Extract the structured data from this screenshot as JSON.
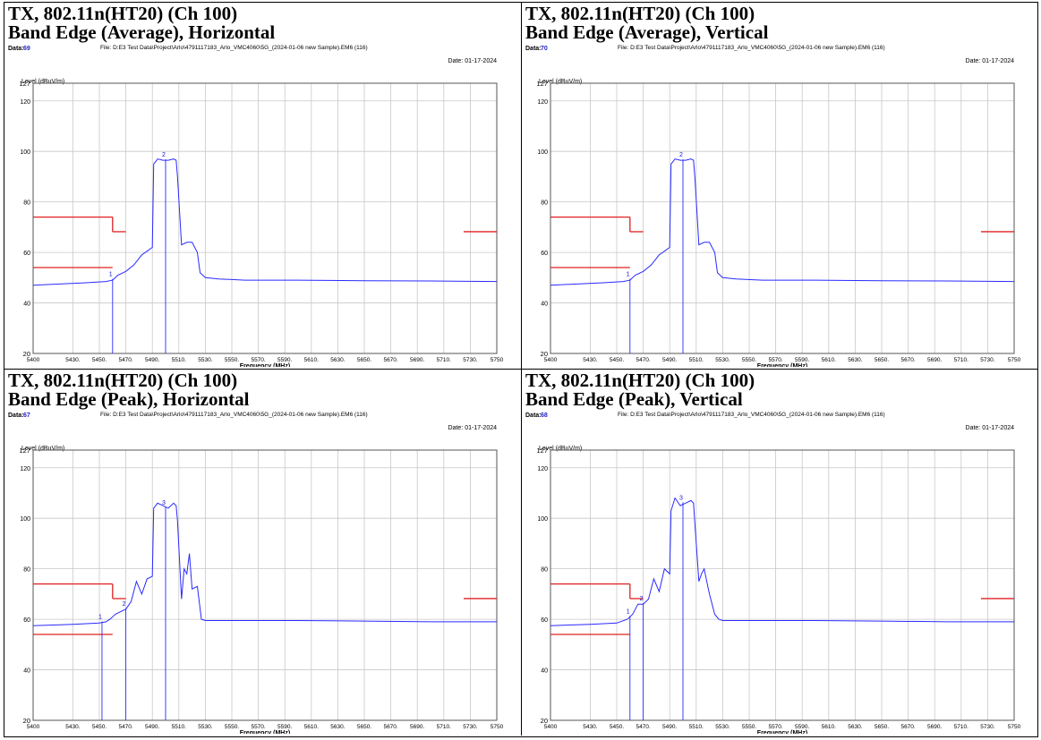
{
  "axis": {
    "ylabel": "Level (dBuV/m)",
    "xlabel": "Frequency (MHz)",
    "ytick_labels": [
      "127",
      "120",
      "100",
      "80",
      "60",
      "40",
      "20"
    ],
    "xtick_labels": [
      "5400",
      "5430.",
      "5450.",
      "5470.",
      "5490.",
      "5510.",
      "5530.",
      "5550.",
      "5570.",
      "5590.",
      "5610.",
      "5630.",
      "5650.",
      "5670.",
      "5690.",
      "5710.",
      "5730.",
      "5750"
    ]
  },
  "common": {
    "file": "File: D:E3 Test Data\\Project\\Arlo\\4791117183_Arlo_VMC4060\\5G_(2024-01-06 new Sample).EM6 (116)",
    "date": "Date: 01-17-2024"
  },
  "colors": {
    "trace": "#2a2aff",
    "limit": "#e02020",
    "grid": "#c8c8c8",
    "marker_text": "#1010cc"
  },
  "panels": [
    {
      "title_line1": "TX, 802.11n(HT20) (Ch 100)",
      "title_line2": "Band Edge (Average), Horizontal",
      "data_label": "Data:",
      "data_number": "69",
      "marker_labels": [
        "1",
        "2"
      ]
    },
    {
      "title_line1": "TX, 802.11n(HT20) (Ch 100)",
      "title_line2": "Band Edge (Average), Vertical",
      "data_label": "Data:",
      "data_number": "70",
      "marker_labels": [
        "1",
        "2"
      ]
    },
    {
      "title_line1": "TX, 802.11n(HT20) (Ch 100)",
      "title_line2": "Band Edge (Peak), Horizontal",
      "data_label": "Data:",
      "data_number": "67",
      "marker_labels": [
        "1",
        "2",
        "3"
      ]
    },
    {
      "title_line1": "TX, 802.11n(HT20) (Ch 100)",
      "title_line2": "Band Edge (Peak), Vertical",
      "data_label": "Data:",
      "data_number": "68",
      "marker_labels": [
        "1",
        "2",
        "3"
      ]
    }
  ],
  "chart_data": [
    {
      "type": "line",
      "title": "Band Edge (Average), Horizontal",
      "xlabel": "Frequency (MHz)",
      "ylabel": "Level (dBuV/m)",
      "xlim": [
        5400,
        5750
      ],
      "ylim": [
        20,
        127
      ],
      "grid": true,
      "series": [
        {
          "x": [
            5400,
            5420,
            5440,
            5455,
            5460,
            5464,
            5470,
            5476,
            5482,
            5486,
            5490,
            5491,
            5494,
            5498,
            5502,
            5506,
            5508,
            5509,
            5512,
            5516,
            5520,
            5524,
            5526,
            5530,
            5540,
            5560,
            5600,
            5650,
            5700,
            5750
          ],
          "y": [
            47,
            47.5,
            48,
            48.5,
            49,
            51,
            52.5,
            55,
            59,
            60.5,
            62,
            95,
            97,
            96.5,
            96.5,
            97,
            96.5,
            90,
            63,
            64,
            64,
            60,
            52,
            50,
            49.5,
            49,
            49,
            48.8,
            48.7,
            48.5
          ]
        }
      ],
      "limits": [
        {
          "x": [
            5400,
            5460
          ],
          "y": 74
        },
        {
          "x": [
            5460,
            5470
          ],
          "y": 68.2
        },
        {
          "x": [
            5725,
            5750
          ],
          "y": 68.2
        },
        {
          "x": [
            5400,
            5460
          ],
          "y": 54
        }
      ],
      "markers": [
        {
          "label": "1",
          "x": 5460,
          "y": 49.2
        },
        {
          "label": "2",
          "x": 5500,
          "y": 96.5
        }
      ]
    },
    {
      "type": "line",
      "title": "Band Edge (Average), Vertical",
      "xlabel": "Frequency (MHz)",
      "ylabel": "Level (dBuV/m)",
      "xlim": [
        5400,
        5750
      ],
      "ylim": [
        20,
        127
      ],
      "grid": true,
      "series": [
        {
          "x": [
            5400,
            5420,
            5440,
            5455,
            5460,
            5464,
            5470,
            5476,
            5482,
            5486,
            5490,
            5491,
            5494,
            5498,
            5502,
            5506,
            5508,
            5509,
            5512,
            5516,
            5520,
            5524,
            5526,
            5530,
            5540,
            5560,
            5600,
            5650,
            5700,
            5750
          ],
          "y": [
            47,
            47.5,
            48,
            48.5,
            49,
            51,
            52.5,
            55,
            59,
            60.5,
            62,
            95,
            97,
            96.5,
            96.5,
            97,
            96.5,
            90,
            63,
            64,
            64,
            60,
            52,
            50,
            49.5,
            49,
            49,
            48.8,
            48.7,
            48.5
          ]
        }
      ],
      "limits": [
        {
          "x": [
            5400,
            5460
          ],
          "y": 74
        },
        {
          "x": [
            5460,
            5470
          ],
          "y": 68.2
        },
        {
          "x": [
            5725,
            5750
          ],
          "y": 68.2
        },
        {
          "x": [
            5400,
            5460
          ],
          "y": 54
        }
      ],
      "markers": [
        {
          "label": "1",
          "x": 5460,
          "y": 49.2
        },
        {
          "label": "2",
          "x": 5500,
          "y": 96.5
        }
      ]
    },
    {
      "type": "line",
      "title": "Band Edge (Peak), Horizontal",
      "xlabel": "Frequency (MHz)",
      "ylabel": "Level (dBuV/m)",
      "xlim": [
        5400,
        5750
      ],
      "ylim": [
        20,
        127
      ],
      "grid": true,
      "series": [
        {
          "x": [
            5400,
            5430,
            5450,
            5455,
            5458,
            5462,
            5466,
            5470,
            5474,
            5478,
            5482,
            5486,
            5490,
            5491,
            5494,
            5498,
            5502,
            5506,
            5508,
            5509,
            5512,
            5514,
            5516,
            5518,
            5520,
            5524,
            5527,
            5530,
            5560,
            5600,
            5650,
            5700,
            5750
          ],
          "y": [
            57.5,
            58,
            58.5,
            59,
            60,
            62,
            63,
            64,
            67,
            75,
            70,
            76,
            77,
            104,
            106,
            105,
            104,
            106,
            105,
            99,
            68,
            80,
            78,
            86,
            72,
            73,
            60,
            59.5,
            59.5,
            59.5,
            59.3,
            59,
            59
          ]
        }
      ],
      "limits": [
        {
          "x": [
            5400,
            5460
          ],
          "y": 74
        },
        {
          "x": [
            5460,
            5470
          ],
          "y": 68.2
        },
        {
          "x": [
            5725,
            5750
          ],
          "y": 68.2
        },
        {
          "x": [
            5400,
            5460
          ],
          "y": 54
        }
      ],
      "markers": [
        {
          "label": "1",
          "x": 5452,
          "y": 58.8
        },
        {
          "label": "2",
          "x": 5470,
          "y": 64
        },
        {
          "label": "3",
          "x": 5500,
          "y": 104
        }
      ]
    },
    {
      "type": "line",
      "title": "Band Edge (Peak), Vertical",
      "xlabel": "Frequency (MHz)",
      "ylabel": "Level (dBuV/m)",
      "xlim": [
        5400,
        5750
      ],
      "ylim": [
        20,
        127
      ],
      "grid": true,
      "series": [
        {
          "x": [
            5400,
            5430,
            5450,
            5458,
            5462,
            5466,
            5470,
            5474,
            5478,
            5482,
            5486,
            5490,
            5491,
            5494,
            5498,
            5502,
            5506,
            5508,
            5509,
            5512,
            5514,
            5516,
            5518,
            5520,
            5524,
            5527,
            5530,
            5560,
            5600,
            5650,
            5700,
            5750
          ],
          "y": [
            57.5,
            58,
            58.5,
            60,
            62,
            66,
            66,
            68,
            76,
            71,
            80,
            78,
            103,
            108,
            105,
            106,
            107,
            106,
            98,
            75,
            78,
            80,
            75,
            70,
            62,
            60,
            59.5,
            59.5,
            59.5,
            59.3,
            59,
            59
          ]
        }
      ],
      "limits": [
        {
          "x": [
            5400,
            5460
          ],
          "y": 74
        },
        {
          "x": [
            5460,
            5470
          ],
          "y": 68.2
        },
        {
          "x": [
            5725,
            5750
          ],
          "y": 68.2
        },
        {
          "x": [
            5400,
            5460
          ],
          "y": 54
        }
      ],
      "markers": [
        {
          "label": "1",
          "x": 5460,
          "y": 61
        },
        {
          "label": "2",
          "x": 5470,
          "y": 66
        },
        {
          "label": "3",
          "x": 5500,
          "y": 106
        }
      ]
    }
  ]
}
